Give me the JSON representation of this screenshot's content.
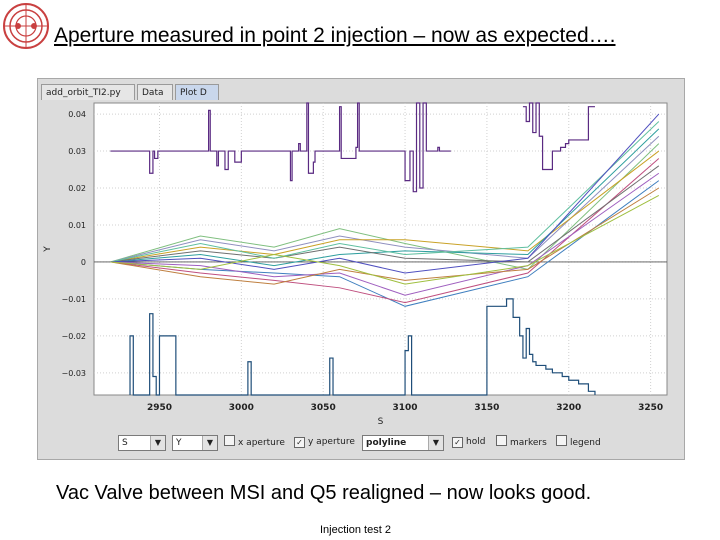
{
  "slide": {
    "title": "Aperture measured in point 2 injection – now as expected….",
    "caption": "Vac Valve between MSI and Q5 realigned – now looks good.",
    "footer": "Injection test 2"
  },
  "tabs": [
    {
      "label": "add_orbit_TI2.py"
    },
    {
      "label": "Data"
    },
    {
      "label": "Plot D"
    }
  ],
  "controls": {
    "x_select": "S",
    "y_select": "Y",
    "x_aperture": "x aperture",
    "y_aperture": "y aperture",
    "style_select": "polyline",
    "hold": "hold",
    "markers": "markers",
    "legend": "legend"
  },
  "colors": {
    "aperture": "#5a2a82",
    "aperture_low": "#1f4e79",
    "plot_bg": "#ffffff"
  },
  "chart_data": {
    "type": "line",
    "xlabel": "S",
    "ylabel": "Y",
    "xlim": [
      2910,
      3260
    ],
    "ylim": [
      -0.036,
      0.043
    ],
    "x_ticks": [
      2950,
      3000,
      3050,
      3100,
      3150,
      3200,
      3250
    ],
    "y_ticks": [
      0.04,
      0.03,
      0.02,
      0.01,
      0,
      -0.01,
      -0.02,
      -0.03
    ],
    "y_tick_labels": [
      "0.04",
      "0.03",
      "0.02",
      "0.01",
      "0",
      "−0.01",
      "−0.02",
      "−0.03"
    ],
    "aperture_upper": {
      "x": [
        2920,
        2944,
        2944,
        2946,
        2946,
        2947,
        2947,
        2949,
        2949,
        2950,
        2950,
        2980,
        2980,
        2981,
        2981,
        2985,
        2985,
        2986,
        2986,
        2990,
        2990,
        2992,
        2992,
        2996,
        2996,
        3000,
        3000,
        3030,
        3030,
        3031,
        3031,
        3035,
        3035,
        3036,
        3036,
        3040,
        3040,
        3041,
        3041,
        3044,
        3044,
        3045,
        3045,
        3050,
        3050,
        3060,
        3060,
        3061,
        3061,
        3070,
        3070,
        3071,
        3071,
        3072,
        3072,
        3080,
        3080,
        3100,
        3100,
        3103,
        3103,
        3105,
        3105,
        3107,
        3107,
        3109,
        3109,
        3111,
        3111,
        3113,
        3113,
        3120,
        3120,
        3121,
        3121,
        3128
      ],
      "y": [
        0.03,
        0.03,
        0.024,
        0.024,
        0.03,
        0.03,
        0.028,
        0.028,
        0.03,
        0.03,
        0.03,
        0.03,
        0.041,
        0.041,
        0.03,
        0.03,
        0.026,
        0.026,
        0.03,
        0.03,
        0.025,
        0.025,
        0.03,
        0.03,
        0.027,
        0.027,
        0.03,
        0.03,
        0.022,
        0.022,
        0.03,
        0.03,
        0.032,
        0.032,
        0.03,
        0.03,
        0.043,
        0.043,
        0.024,
        0.024,
        0.027,
        0.027,
        0.03,
        0.03,
        0.03,
        0.03,
        0.042,
        0.042,
        0.028,
        0.028,
        0.031,
        0.031,
        0.043,
        0.043,
        0.03,
        0.03,
        0.03,
        0.03,
        0.022,
        0.022,
        0.03,
        0.03,
        0.019,
        0.019,
        0.043,
        0.043,
        0.02,
        0.02,
        0.043,
        0.043,
        0.03,
        0.03,
        0.031,
        0.031,
        0.03,
        0.03
      ]
    },
    "aperture_upper_right": {
      "x": [
        3172,
        3174,
        3174,
        3176,
        3176,
        3178,
        3178,
        3180,
        3180,
        3182,
        3182,
        3184,
        3184,
        3190,
        3190,
        3195,
        3195,
        3198,
        3198,
        3200,
        3200,
        3212,
        3212,
        3216
      ],
      "y": [
        0.042,
        0.042,
        0.038,
        0.038,
        0.043,
        0.043,
        0.035,
        0.035,
        0.043,
        0.043,
        0.034,
        0.034,
        0.025,
        0.025,
        0.03,
        0.03,
        0.031,
        0.031,
        0.032,
        0.032,
        0.033,
        0.033,
        0.042,
        0.042
      ]
    },
    "aperture_lower": {
      "x": [
        2932,
        2932,
        2934,
        2934,
        2944,
        2944,
        2946,
        2946,
        2948,
        2948,
        2950,
        2950,
        2960,
        2960,
        2962,
        2962,
        3004,
        3004,
        3006,
        3006,
        3054,
        3054,
        3056,
        3056,
        3100,
        3100,
        3102,
        3102,
        3104,
        3104,
        3150,
        3150,
        3162,
        3162,
        3166,
        3166,
        3170,
        3170,
        3172,
        3172,
        3174,
        3174,
        3176,
        3176,
        3178,
        3178,
        3180,
        3180,
        3186,
        3186,
        3190,
        3190,
        3196,
        3196,
        3200,
        3200,
        3206,
        3206,
        3212,
        3212,
        3216,
        3216
      ],
      "y": [
        -0.036,
        -0.02,
        -0.02,
        -0.036,
        -0.036,
        -0.014,
        -0.014,
        -0.031,
        -0.031,
        -0.036,
        -0.036,
        -0.02,
        -0.02,
        -0.036,
        -0.036,
        -0.036,
        -0.036,
        -0.027,
        -0.027,
        -0.036,
        -0.036,
        -0.026,
        -0.026,
        -0.036,
        -0.036,
        -0.024,
        -0.024,
        -0.02,
        -0.02,
        -0.036,
        -0.036,
        -0.012,
        -0.012,
        -0.01,
        -0.01,
        -0.015,
        -0.015,
        -0.02,
        -0.02,
        -0.026,
        -0.026,
        -0.018,
        -0.018,
        -0.025,
        -0.025,
        -0.027,
        -0.027,
        -0.028,
        -0.028,
        -0.029,
        -0.029,
        -0.03,
        -0.03,
        -0.031,
        -0.031,
        -0.032,
        -0.032,
        -0.033,
        -0.033,
        -0.035,
        -0.035,
        -0.036
      ]
    },
    "orbits": [
      {
        "color": "#7fbf7f",
        "y": [
          0,
          0.007,
          0.004,
          0.009,
          0.005,
          -0.002,
          0.032
        ]
      },
      {
        "color": "#8f8fbf",
        "y": [
          0,
          0.006,
          0.003,
          0.007,
          0.004,
          0.001,
          0.034
        ]
      },
      {
        "color": "#c9a227",
        "y": [
          0,
          0.004,
          0.002,
          0.006,
          0.006,
          0.003,
          0.03
        ]
      },
      {
        "color": "#3f7fbf",
        "y": [
          0,
          -0.002,
          -0.003,
          -0.004,
          -0.012,
          -0.004,
          0.022
        ]
      },
      {
        "color": "#bf4f7f",
        "y": [
          0,
          -0.003,
          -0.005,
          -0.007,
          -0.011,
          -0.003,
          0.028
        ]
      },
      {
        "color": "#2f9f9f",
        "y": [
          0,
          0.002,
          -0.001,
          0.002,
          0.003,
          0.002,
          0.036
        ]
      },
      {
        "color": "#6f6f6f",
        "y": [
          0,
          0.003,
          0.001,
          0.004,
          0.001,
          0,
          0.026
        ]
      },
      {
        "color": "#9f5fbf",
        "y": [
          0,
          -0.001,
          -0.004,
          -0.003,
          -0.009,
          -0.001,
          0.024
        ]
      },
      {
        "color": "#5fbf9f",
        "y": [
          0,
          0.005,
          0.001,
          0.005,
          0.002,
          0.004,
          0.038
        ]
      },
      {
        "color": "#bf7f3f",
        "y": [
          0,
          -0.004,
          -0.006,
          -0.002,
          -0.005,
          -0.002,
          0.02
        ]
      },
      {
        "color": "#4f4fbf",
        "y": [
          0,
          0.001,
          -0.002,
          0.001,
          -0.003,
          0.001,
          0.04
        ]
      },
      {
        "color": "#9fbf3f",
        "y": [
          0,
          -0.002,
          0.002,
          -0.001,
          -0.006,
          -0.001,
          0.018
        ]
      }
    ],
    "orbit_x": [
      2920,
      2975,
      3020,
      3060,
      3100,
      3175,
      3255
    ]
  }
}
